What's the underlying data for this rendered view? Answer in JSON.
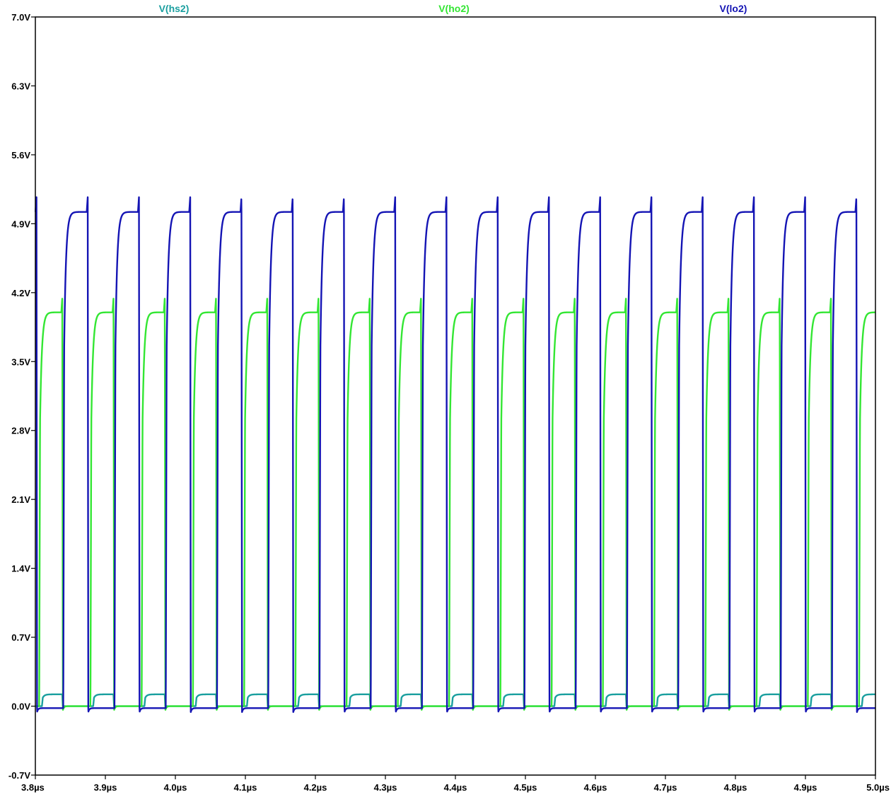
{
  "chart_data": {
    "type": "line",
    "title": "",
    "xlabel": "",
    "ylabel": "",
    "xlim": [
      3.8,
      5.0
    ],
    "ylim": [
      -0.7,
      7.0
    ],
    "grid": false,
    "legend_placement": "top",
    "x_ticks": [
      {
        "value": 3.8,
        "label": "3.8µs"
      },
      {
        "value": 3.9,
        "label": "3.9µs"
      },
      {
        "value": 4.0,
        "label": "4.0µs"
      },
      {
        "value": 4.1,
        "label": "4.1µs"
      },
      {
        "value": 4.2,
        "label": "4.2µs"
      },
      {
        "value": 4.3,
        "label": "4.3µs"
      },
      {
        "value": 4.4,
        "label": "4.4µs"
      },
      {
        "value": 4.5,
        "label": "4.5µs"
      },
      {
        "value": 4.6,
        "label": "4.6µs"
      },
      {
        "value": 4.7,
        "label": "4.7µs"
      },
      {
        "value": 4.8,
        "label": "4.8µs"
      },
      {
        "value": 4.9,
        "label": "4.9µs"
      },
      {
        "value": 5.0,
        "label": "5.0µs"
      }
    ],
    "y_ticks": [
      {
        "value": 7.0,
        "label": "7.0V"
      },
      {
        "value": 6.3,
        "label": "6.3V"
      },
      {
        "value": 5.6,
        "label": "5.6V"
      },
      {
        "value": 4.9,
        "label": "4.9V"
      },
      {
        "value": 4.2,
        "label": "4.2V"
      },
      {
        "value": 3.5,
        "label": "3.5V"
      },
      {
        "value": 2.8,
        "label": "2.8V"
      },
      {
        "value": 2.1,
        "label": "2.1V"
      },
      {
        "value": 1.4,
        "label": "1.4V"
      },
      {
        "value": 0.7,
        "label": "0.7V"
      },
      {
        "value": 0.0,
        "label": "0.0V"
      },
      {
        "value": -0.7,
        "label": "-0.7V"
      }
    ],
    "period_us": 0.0732,
    "series": [
      {
        "name": "V(hs2)",
        "color": "#1a9f9f",
        "low_level": 0.0,
        "high_level": 0.12,
        "first_rise_us": 3.8094,
        "fall_offset_us": 0.029
      },
      {
        "name": "V(ho2)",
        "color": "#33e633",
        "low_level": 0.0,
        "high_level": 4.0,
        "overshoot_peak": 4.15,
        "first_rise_us": 3.8055,
        "fall_offset_us": 0.033
      },
      {
        "name": "V(lo2)",
        "color": "#1414b4",
        "low_level": -0.02,
        "high_level": 5.02,
        "overshoot_peak": 5.17,
        "first_rise_us": 3.8399,
        "fall_offset_us": 0.0349
      }
    ]
  }
}
